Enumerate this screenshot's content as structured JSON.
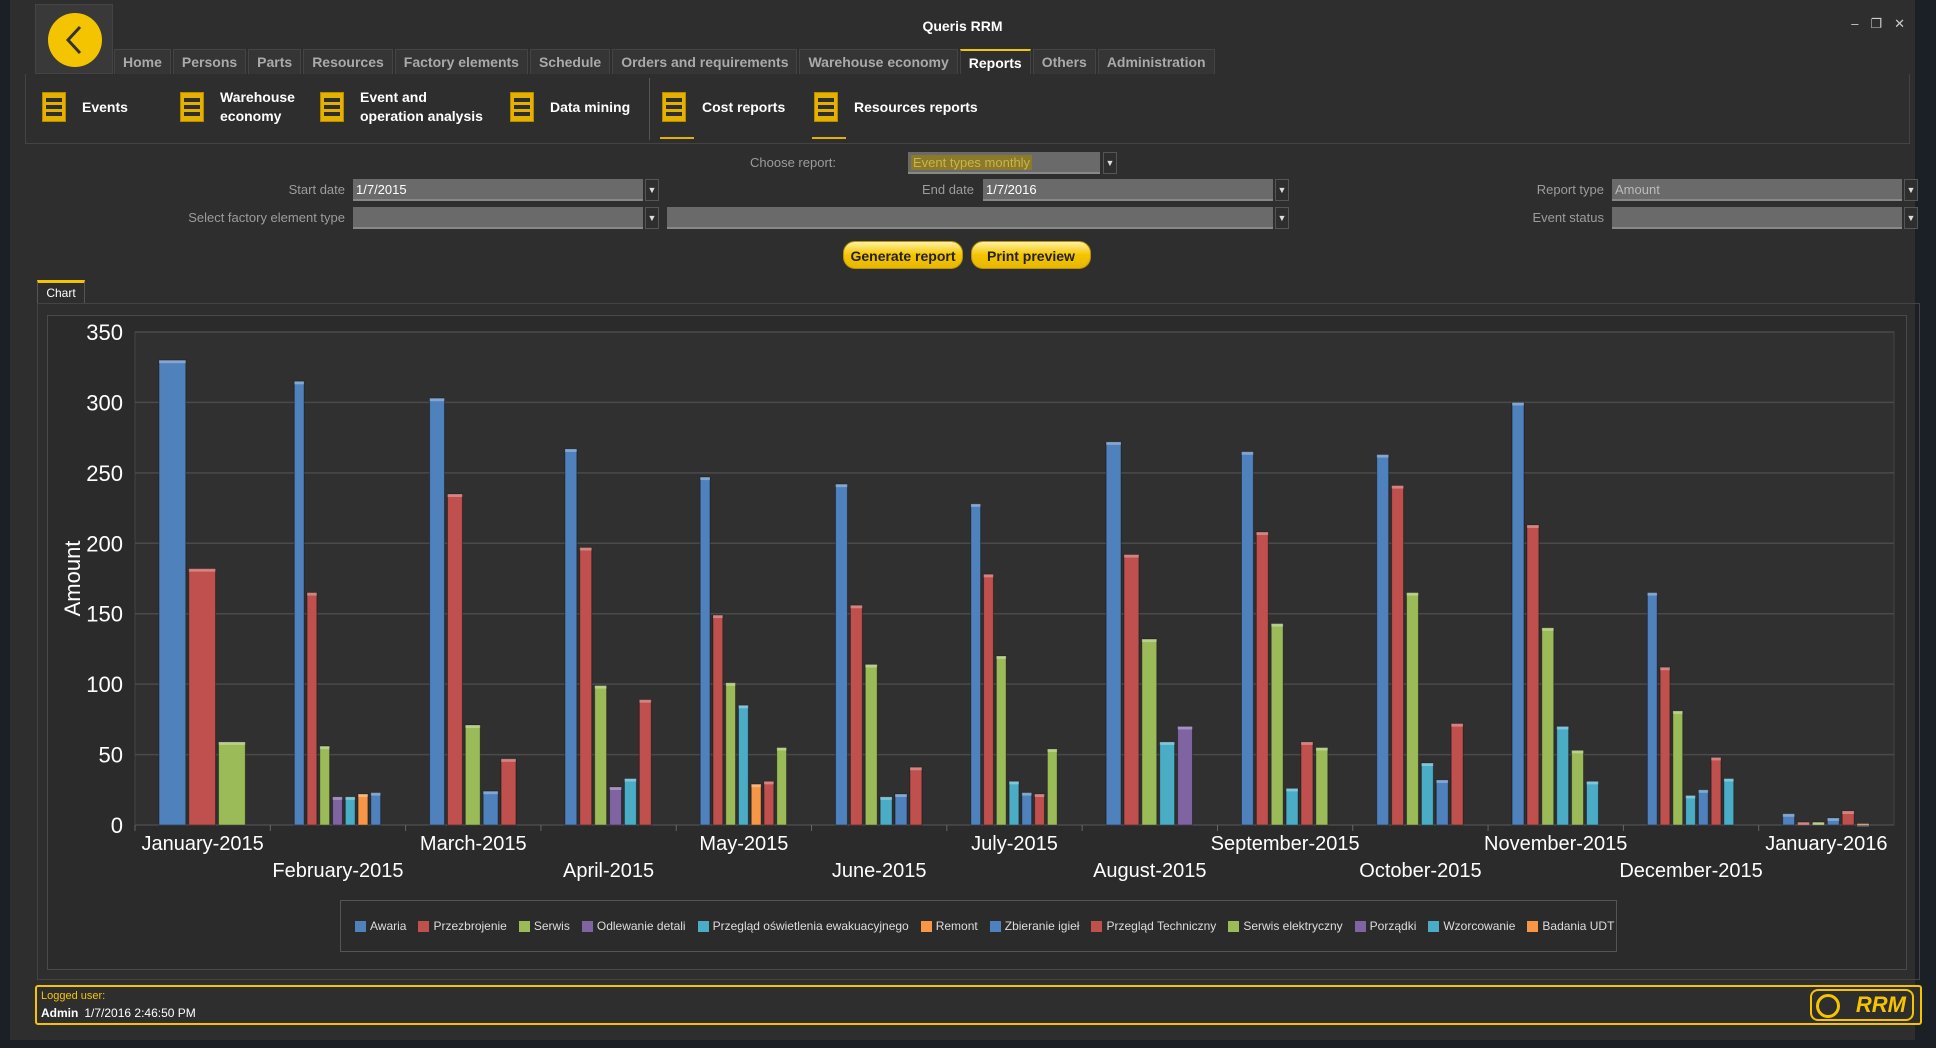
{
  "window": {
    "title": "Queris RRM",
    "controls": [
      "–",
      "❐",
      "✕"
    ]
  },
  "tabs": [
    {
      "label": "Home"
    },
    {
      "label": "Persons"
    },
    {
      "label": "Parts"
    },
    {
      "label": "Resources"
    },
    {
      "label": "Factory elements"
    },
    {
      "label": "Schedule"
    },
    {
      "label": "Orders and requirements"
    },
    {
      "label": "Warehouse economy"
    },
    {
      "label": "Reports",
      "active": true
    },
    {
      "label": "Others"
    },
    {
      "label": "Administration"
    }
  ],
  "ribbon": [
    {
      "l1": "Events",
      "l2": ""
    },
    {
      "l1": "Warehouse",
      "l2": "economy"
    },
    {
      "l1": "Event and",
      "l2": "operation analysis"
    },
    {
      "l1": "Data mining",
      "l2": ""
    },
    {
      "l1": "Cost reports",
      "l2": ""
    },
    {
      "l1": "Resources reports",
      "l2": ""
    }
  ],
  "form": {
    "choose_report_label": "Choose report:",
    "choose_report_value": "Event types monthly",
    "start_date_label": "Start date",
    "start_date_value": "1/7/2015",
    "end_date_label": "End date",
    "end_date_value": "1/7/2016",
    "report_type_label": "Report type",
    "report_type_value": "Amount",
    "factory_type_label": "Select factory element type",
    "factory_type_value": "",
    "factory_element_value": "",
    "event_status_label": "Event status",
    "event_status_value": "",
    "generate_label": "Generate report",
    "print_label": "Print preview"
  },
  "chart_tab": "Chart",
  "status": {
    "user_label": "Logged user:",
    "user": "Admin",
    "datetime": "1/7/2016 2:46:50 PM",
    "logo": "RRM"
  },
  "chart_data": {
    "type": "bar",
    "ylabel": "Amount",
    "ylim": [
      0,
      350
    ],
    "yticks": [
      0,
      50,
      100,
      150,
      200,
      250,
      300,
      350
    ],
    "grid": true,
    "legend": "bottom",
    "categories": [
      "January-2015",
      "February-2015",
      "March-2015",
      "April-2015",
      "May-2015",
      "June-2015",
      "July-2015",
      "August-2015",
      "September-2015",
      "October-2015",
      "November-2015",
      "December-2015",
      "January-2016"
    ],
    "series": [
      {
        "name": "Awaria",
        "color": "#4f81bd",
        "values": [
          330,
          315,
          303,
          267,
          247,
          242,
          228,
          272,
          265,
          263,
          300,
          165,
          8
        ]
      },
      {
        "name": "Przezbrojenie",
        "color": "#c0504d",
        "values": [
          182,
          165,
          235,
          197,
          149,
          156,
          178,
          192,
          208,
          241,
          213,
          112,
          2
        ]
      },
      {
        "name": "Serwis",
        "color": "#9bbb59",
        "values": [
          59,
          56,
          71,
          99,
          101,
          114,
          120,
          132,
          143,
          165,
          140,
          81,
          2
        ]
      },
      {
        "name": "Odlewanie detali",
        "color": "#8064a2",
        "values": [
          0,
          20,
          0,
          27,
          0,
          0,
          0,
          0,
          0,
          0,
          0,
          0,
          0
        ]
      },
      {
        "name": "Przegląd oświetlenia ewakuacyjnego",
        "color": "#4bacc6",
        "values": [
          0,
          20,
          0,
          33,
          85,
          20,
          31,
          59,
          26,
          44,
          70,
          21,
          0
        ]
      },
      {
        "name": "Remont",
        "color": "#f79646",
        "values": [
          0,
          22,
          0,
          0,
          29,
          0,
          0,
          0,
          0,
          0,
          0,
          0,
          0
        ]
      },
      {
        "name": "Zbieranie igieł",
        "color": "#4f81bd",
        "values": [
          0,
          23,
          24,
          0,
          0,
          22,
          23,
          0,
          0,
          32,
          0,
          25,
          5
        ]
      },
      {
        "name": "Przegląd Techniczny",
        "color": "#c0504d",
        "values": [
          0,
          0,
          47,
          89,
          31,
          41,
          22,
          0,
          59,
          72,
          0,
          48,
          10
        ]
      },
      {
        "name": "Serwis elektryczny",
        "color": "#9bbb59",
        "values": [
          0,
          0,
          0,
          0,
          55,
          0,
          54,
          0,
          55,
          0,
          53,
          0,
          0
        ]
      },
      {
        "name": "Porządki",
        "color": "#8064a2",
        "values": [
          0,
          0,
          0,
          0,
          0,
          0,
          0,
          70,
          0,
          0,
          0,
          0,
          0
        ]
      },
      {
        "name": "Wzorcowanie",
        "color": "#4bacc6",
        "values": [
          0,
          0,
          0,
          0,
          0,
          0,
          0,
          0,
          0,
          0,
          31,
          33,
          0
        ]
      },
      {
        "name": "Badania UDT",
        "color": "#f79646",
        "values": [
          0,
          0,
          0,
          0,
          0,
          0,
          0,
          0,
          0,
          0,
          0,
          0,
          1
        ]
      }
    ]
  }
}
